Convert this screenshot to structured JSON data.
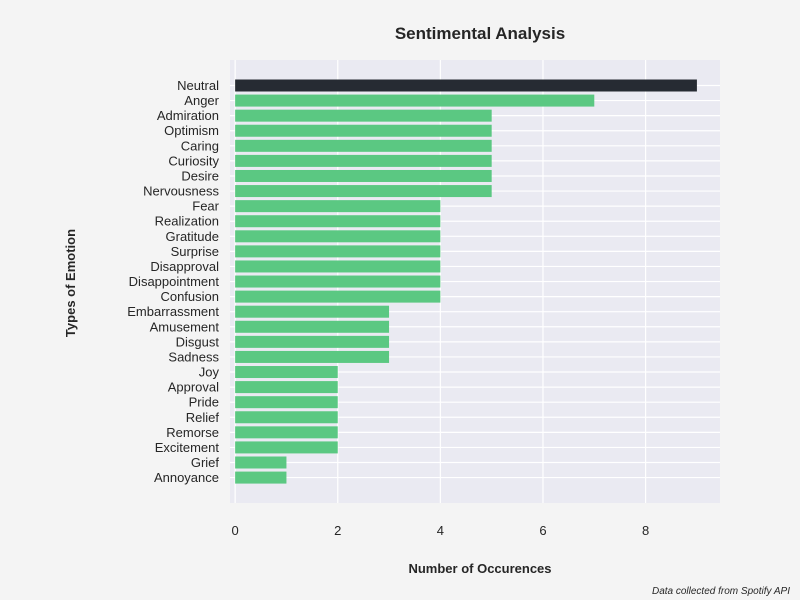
{
  "chart_data": {
    "type": "bar",
    "orientation": "horizontal",
    "title": "Sentimental Analysis",
    "xlabel": "Number of Occurences",
    "ylabel": "Types of Emotion",
    "source_note": "Data collected from Spotify API",
    "xlim": [
      -0.1,
      9.45
    ],
    "xticks": [
      0,
      2,
      4,
      6,
      8
    ],
    "grid": true,
    "categories": [
      "Neutral",
      "Anger",
      "Admiration",
      "Optimism",
      "Caring",
      "Curiosity",
      "Desire",
      "Nervousness",
      "Fear",
      "Realization",
      "Gratitude",
      "Surprise",
      "Disapproval",
      "Disappointment",
      "Confusion",
      "Embarrassment",
      "Amusement",
      "Disgust",
      "Sadness",
      "Joy",
      "Approval",
      "Pride",
      "Relief",
      "Remorse",
      "Excitement",
      "Grief",
      "Annoyance"
    ],
    "values": [
      9,
      7,
      5,
      5,
      5,
      5,
      5,
      5,
      4,
      4,
      4,
      4,
      4,
      4,
      4,
      3,
      3,
      3,
      3,
      2,
      2,
      2,
      2,
      2,
      2,
      1,
      1
    ],
    "colors": {
      "bar": "#5bc882",
      "highlight": "#262b33",
      "plot_bg": "#eaeaf2",
      "grid": "#ffffff"
    }
  }
}
